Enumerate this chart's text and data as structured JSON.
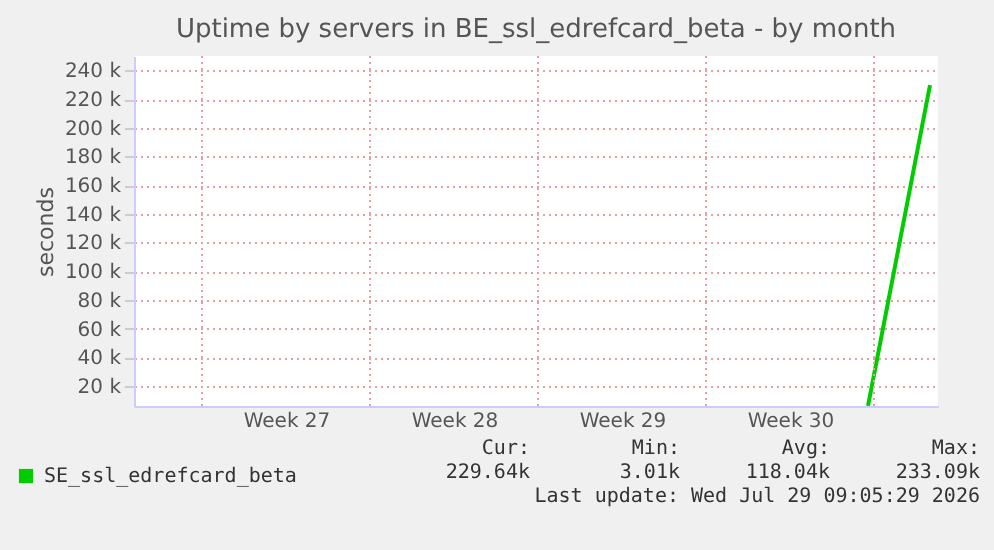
{
  "chart_data": {
    "type": "line",
    "title": "Uptime by servers in BE_ssl_edrefcard_beta - by month",
    "ylabel": "seconds",
    "xlim": [
      "2026-06-26T04:00",
      "2026-07-29T16:00"
    ],
    "xticks": [
      {
        "value": "2026-06-29T00:00",
        "label": null
      },
      {
        "value": "2026-07-02T12:00",
        "label": "Week 27"
      },
      {
        "value": "2026-07-06T00:00",
        "label": null
      },
      {
        "value": "2026-07-09T12:00",
        "label": "Week 28"
      },
      {
        "value": "2026-07-13T00:00",
        "label": null
      },
      {
        "value": "2026-07-16T12:00",
        "label": "Week 29"
      },
      {
        "value": "2026-07-20T00:00",
        "label": null
      },
      {
        "value": "2026-07-23T12:00",
        "label": "Week 30"
      },
      {
        "value": "2026-07-27T00:00",
        "label": null
      }
    ],
    "ylim": [
      6000,
      250000
    ],
    "yticks": [
      {
        "value": 20000,
        "label": "20 k"
      },
      {
        "value": 40000,
        "label": "40 k"
      },
      {
        "value": 60000,
        "label": "60 k"
      },
      {
        "value": 80000,
        "label": "80 k"
      },
      {
        "value": 100000,
        "label": "100 k"
      },
      {
        "value": 120000,
        "label": "120 k"
      },
      {
        "value": 140000,
        "label": "140 k"
      },
      {
        "value": 160000,
        "label": "160 k"
      },
      {
        "value": 180000,
        "label": "180 k"
      },
      {
        "value": 200000,
        "label": "200 k"
      },
      {
        "value": 220000,
        "label": "220 k"
      },
      {
        "value": 240000,
        "label": "240 k"
      }
    ],
    "grid": true,
    "legend": "bottom left",
    "series": [
      {
        "name": "SE_ssl_edrefcard_beta",
        "color": "#00cc00",
        "x": [
          "2026-07-26T18:00",
          "2026-07-29T08:00"
        ],
        "values": [
          6000,
          229640
        ]
      }
    ],
    "annotations": [
      "Cur:",
      "Min:",
      "Avg:",
      "Max:",
      "229.64k",
      "3.01k",
      "118.04k",
      "233.09k",
      "Last update: Wed Jul 29 09:05:29 2026"
    ]
  }
}
